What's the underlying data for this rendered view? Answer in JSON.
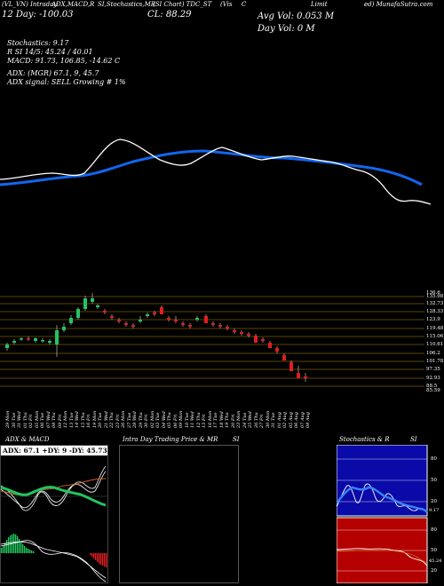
{
  "header": {
    "row1": [
      "(VL_VN) Intraday",
      "ADX,MACD,R",
      "SI,Stochastics,MR",
      "(SI Chart) TDC_ST",
      "(Vis",
      "C",
      "Limit",
      "ed) MunafaSutra.com"
    ],
    "day_change": "12 Day: -100.03",
    "close": "CL: 88.29",
    "avg_vol": "Avg Vol: 0.053 M",
    "day_vol": "Day Vol: 0  M"
  },
  "indicators": {
    "stochastics": "Stochastics: 9.17",
    "rsi": "R           SI 14/5: 45.24 / 40.01",
    "macd": "MACD: 91.73, 106.85, -14.62  C",
    "adx": "ADX:                   (MGR) 67.1, 9, 45.7",
    "signal": "ADX  signal: SELL Growing # 1%"
  },
  "price_axis": [
    "136.6",
    "135.98",
    "132.73",
    "128.33",
    "123.9",
    "119.48",
    "115.06",
    "110.61",
    "106.2",
    "101.78",
    "97.35",
    "92.93",
    "88.5",
    "85.59"
  ],
  "dates": [
    "29 Mon",
    "30 Tue",
    "31 Wed",
    "01 Thu",
    "02 Fri",
    "05 Mon",
    "06 Tue",
    "07 Wed",
    "08 Thu",
    "09 Fri",
    "12 Mon",
    "13 Tue",
    "14 Wed",
    "15 Thu",
    "16 Fri",
    "19 Mon",
    "20 Tue",
    "21 Wed",
    "22 Thu",
    "23 Fri",
    "26 Mon",
    "27 Tue",
    "28 Wed",
    "29 Thu",
    "30 Fri",
    "02 Mon",
    "03 Tue",
    "04 Wed",
    "05 Thu",
    "06 Fri",
    "09 Mon",
    "10 Tue",
    "11 Wed",
    "12 Thu",
    "13 Fri",
    "16 Mon",
    "17 Tue",
    "18 Wed",
    "19 Thu",
    "20 Fri",
    "23 Mon",
    "24 Tue",
    "25 Wed",
    "26 Thu",
    "27 Fri",
    "30 Mon",
    "31 Tue",
    "01 Aug",
    "02 Aug",
    "05 Aug",
    "06 Aug",
    "07 Aug",
    "08 Aug"
  ],
  "panels": {
    "adx_title": "ADX  & MACD",
    "adx_values": "ADX: 67.1 +DY: 9 -DY: 45.73",
    "intra_title": "Intra  Day Trading Price  & MR",
    "intra_title2": "SI",
    "stoch_title": "Stochastics & R",
    "stoch_title2": "SI",
    "stoch_levels": [
      "80",
      "50",
      "20"
    ],
    "rsi_levels": [
      "80",
      "50",
      "20"
    ],
    "stoch_value": "9.17",
    "rsi_value": "45.24"
  },
  "colors": {
    "bull": "#22c55e",
    "bear": "#e11d1d",
    "ema": "#1166ee",
    "grid": "#b8860b"
  }
}
